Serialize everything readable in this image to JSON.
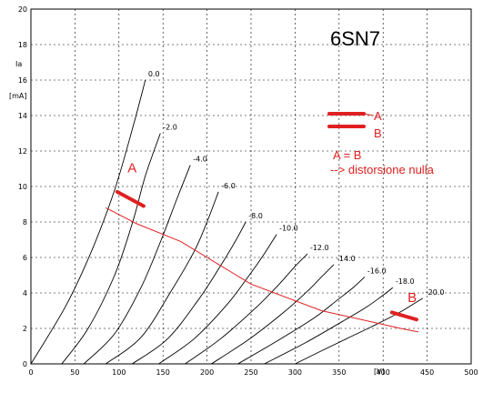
{
  "chart_data": {
    "type": "line",
    "title": "6SN7",
    "xlabel": "[V]",
    "ylabel": "Ia",
    "yunit": "[mA]",
    "xlim": [
      0,
      500
    ],
    "ylim": [
      0,
      20
    ],
    "x_ticks": [
      "0",
      "50",
      "100",
      "150",
      "200",
      "250",
      "300",
      "350",
      "400",
      "450",
      "500"
    ],
    "x_tick_values": [
      0,
      50,
      100,
      150,
      200,
      250,
      300,
      350,
      400,
      450,
      500
    ],
    "y_ticks": [
      "0",
      "2",
      "4",
      "6",
      "8",
      "10",
      "12",
      "14",
      "16",
      "18",
      "20"
    ],
    "y_tick_values": [
      0,
      2,
      4,
      6,
      8,
      10,
      12,
      14,
      16,
      18,
      20
    ],
    "grid": "dashed",
    "series": [
      {
        "name": "0.0",
        "x": [
          0,
          40,
          70,
          95,
          115,
          130
        ],
        "y": [
          0,
          3.3,
          6.5,
          9.8,
          13.2,
          16
        ]
      },
      {
        "name": "-2.0",
        "x": [
          35,
          65,
          95,
          115,
          130,
          147
        ],
        "y": [
          0,
          2,
          5,
          7.9,
          10.6,
          13
        ]
      },
      {
        "name": "-4.0",
        "x": [
          60,
          95,
          125,
          148,
          165,
          181
        ],
        "y": [
          0,
          1.7,
          4.3,
          7,
          9.2,
          11.2
        ]
      },
      {
        "name": "-6.0",
        "x": [
          85,
          125,
          158,
          185,
          200,
          213
        ],
        "y": [
          0,
          1.5,
          4,
          6.3,
          8,
          9.7
        ]
      },
      {
        "name": "-8.0",
        "x": [
          115,
          155,
          190,
          215,
          232,
          244
        ],
        "y": [
          0,
          1.4,
          3.6,
          5.5,
          6.9,
          8
        ]
      },
      {
        "name": "-10.0",
        "x": [
          145,
          185,
          222,
          248,
          265,
          279
        ],
        "y": [
          0,
          1.4,
          3.3,
          5,
          6.2,
          7.3
        ]
      },
      {
        "name": "-12.0",
        "x": [
          175,
          215,
          254,
          282,
          300,
          314
        ],
        "y": [
          0,
          1.4,
          3.1,
          4.5,
          5.5,
          6.2
        ]
      },
      {
        "name": "-14.0",
        "x": [
          205,
          248,
          287,
          314,
          330,
          344
        ],
        "y": [
          0,
          1.4,
          2.9,
          4.1,
          4.9,
          5.6
        ]
      },
      {
        "name": "-16.0",
        "x": [
          235,
          280,
          322,
          348,
          366,
          379
        ],
        "y": [
          0,
          1.3,
          2.6,
          3.6,
          4.3,
          4.9
        ]
      },
      {
        "name": "-18.0",
        "x": [
          265,
          312,
          354,
          381,
          398,
          411
        ],
        "y": [
          0,
          1.2,
          2.4,
          3.2,
          3.8,
          4.3
        ]
      },
      {
        "name": "-20.0",
        "x": [
          300,
          345,
          387,
          415,
          432,
          445
        ],
        "y": [
          0,
          1.1,
          2.1,
          2.8,
          3.3,
          3.7
        ]
      }
    ],
    "load_line": {
      "x": [
        85,
        120,
        170,
        250,
        330,
        420,
        440
      ],
      "y": [
        8.8,
        7.9,
        6.9,
        4.5,
        3.0,
        2.0,
        1.8
      ]
    },
    "marker_A": {
      "x1": 98,
      "y1": 9.7,
      "x2": 128,
      "y2": 8.9,
      "label": "A",
      "label_x": 115,
      "label_y": 10.8
    },
    "marker_B": {
      "x1": 410,
      "y1": 2.9,
      "x2": 438,
      "y2": 2.5,
      "label": "B",
      "label_x": 433,
      "label_y": 3.5
    },
    "legend_A_label": "A",
    "legend_B_label": "B",
    "annotation_line1": "A = B",
    "annotation_line2": "--> distorsione nulla",
    "colors": {
      "curve": "#000000",
      "grid": "#000000",
      "load_line": "#e02020",
      "marker": "#e02020",
      "annotation": "#e02020"
    }
  }
}
